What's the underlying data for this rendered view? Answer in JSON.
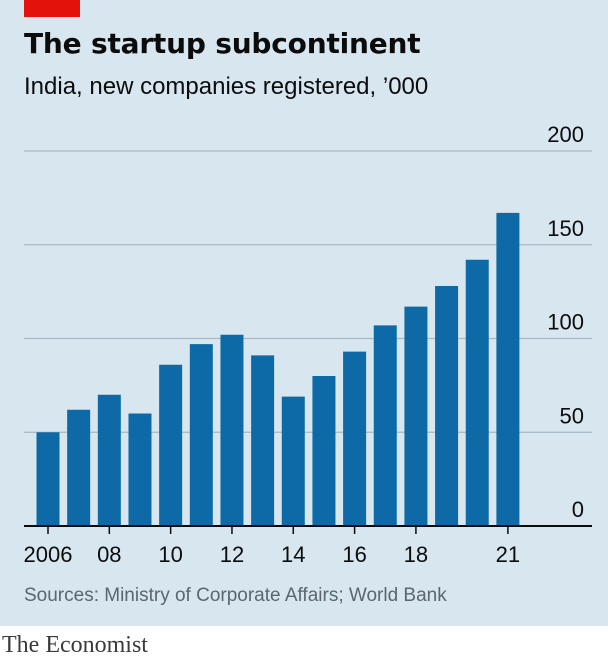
{
  "title": "The startup subcontinent",
  "subtitle": "India, new companies registered, ’000",
  "source": "Sources: Ministry of Corporate Affairs; World Bank",
  "brand": "The Economist",
  "colors": {
    "background": "#d7e6ef",
    "bar": "#0d6aa6",
    "gridline": "#a9b8c3",
    "baseline": "#0c0c0c",
    "accent": "#e3120b"
  },
  "chart_data": {
    "type": "bar",
    "x": [
      2006,
      2007,
      2008,
      2009,
      2010,
      2011,
      2012,
      2013,
      2014,
      2015,
      2016,
      2017,
      2018,
      2019,
      2020,
      2021
    ],
    "values": [
      50,
      62,
      70,
      60,
      86,
      97,
      102,
      91,
      69,
      80,
      93,
      107,
      117,
      128,
      142,
      167
    ],
    "x_tick_labels": [
      "2006",
      "08",
      "10",
      "12",
      "14",
      "16",
      "18",
      "21"
    ],
    "x_tick_values": [
      2006,
      2008,
      2010,
      2012,
      2014,
      2016,
      2018,
      2021
    ],
    "y_ticks": [
      0,
      50,
      100,
      150,
      200
    ],
    "ylim": [
      0,
      200
    ],
    "y_axis_side": "right",
    "grid": true,
    "legend": "none"
  }
}
